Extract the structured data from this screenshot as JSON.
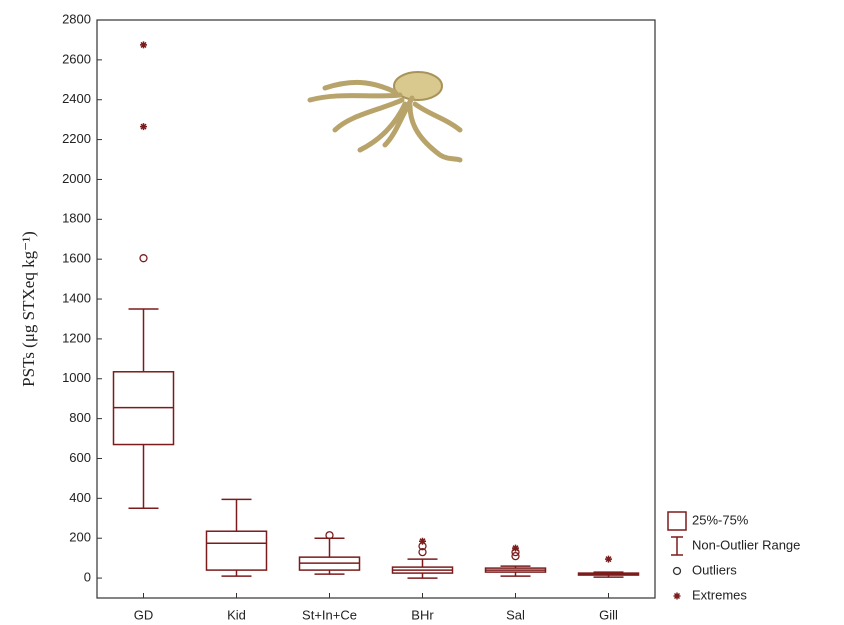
{
  "chart_data": {
    "type": "box",
    "y_label": "PSTs (μg STXeq kg⁻¹)",
    "categories": [
      "GD",
      "Kid",
      "St+In+Ce",
      "BHr",
      "Sal",
      "Gill"
    ],
    "color": "#7b1c1c",
    "boxes": [
      {
        "low": 350,
        "q1": 670,
        "median": 855,
        "q3": 1035,
        "high": 1350,
        "outliers": [
          1605
        ],
        "extremes": [
          2265,
          2675
        ]
      },
      {
        "low": 10,
        "q1": 40,
        "median": 175,
        "q3": 235,
        "high": 395,
        "outliers": [],
        "extremes": []
      },
      {
        "low": 20,
        "q1": 40,
        "median": 75,
        "q3": 105,
        "high": 200,
        "outliers": [
          215
        ],
        "extremes": []
      },
      {
        "low": 0,
        "q1": 25,
        "median": 40,
        "q3": 55,
        "high": 95,
        "outliers": [
          130,
          160
        ],
        "extremes": [
          185
        ]
      },
      {
        "low": 10,
        "q1": 30,
        "median": 40,
        "q3": 50,
        "high": 60,
        "outliers": [
          110,
          130
        ],
        "extremes": [
          150
        ]
      },
      {
        "low": 5,
        "q1": 15,
        "median": 20,
        "q3": 25,
        "high": 30,
        "outliers": [],
        "extremes": [
          95
        ]
      }
    ],
    "ylim": [
      -100,
      2800
    ],
    "yticks": [
      0,
      200,
      400,
      600,
      800,
      1000,
      1200,
      1400,
      1600,
      1800,
      2000,
      2200,
      2400,
      2600,
      2800
    ],
    "legend": [
      "25%-75%",
      "Non-Outlier Range",
      "Outliers",
      "Extremes"
    ],
    "legend_position": "lower right outside"
  }
}
